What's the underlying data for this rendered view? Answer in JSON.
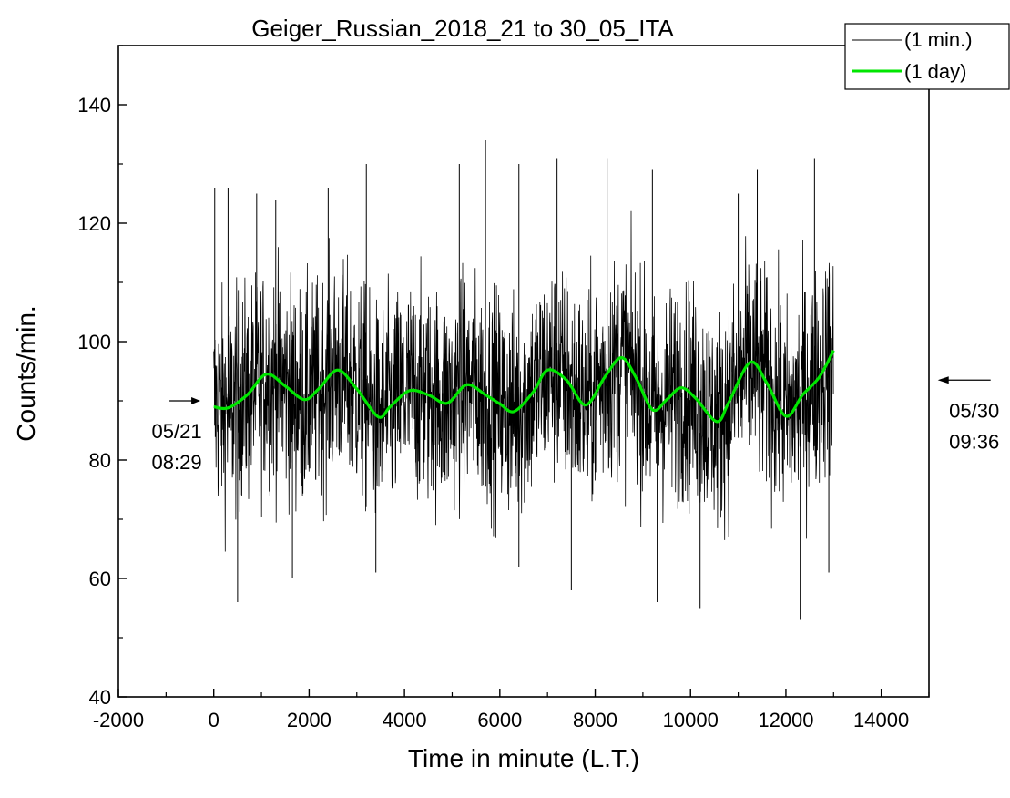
{
  "chart_data": {
    "type": "line",
    "title": "Geiger_Russian_2018_21 to 30_05_ITA",
    "xlabel": "Time in minute (L.T.)",
    "ylabel": "Counts/min.",
    "xlim": [
      -2000,
      15000
    ],
    "ylim": [
      40,
      150
    ],
    "x_ticks": [
      -2000,
      0,
      2000,
      4000,
      6000,
      8000,
      10000,
      12000,
      14000
    ],
    "y_ticks": [
      40,
      60,
      80,
      100,
      120,
      140
    ],
    "x_tick_labels": [
      "-2000",
      "0",
      "2000",
      "4000",
      "6000",
      "8000",
      "10000",
      "12000",
      "14000"
    ],
    "y_tick_labels": [
      "40",
      "60",
      "80",
      "100",
      "120",
      "140"
    ],
    "grid": false,
    "legend_position": "top-right",
    "series": [
      {
        "name": "(1 min.)",
        "color": "#000000",
        "x_range": [
          0,
          13000
        ],
        "description_points_typical_band": [
          72,
          108
        ],
        "extremes": {
          "max": 134,
          "min": 53
        },
        "spike_samples": [
          {
            "x": 20,
            "y": 126
          },
          {
            "x": 300,
            "y": 126
          },
          {
            "x": 500,
            "y": 56
          },
          {
            "x": 900,
            "y": 125
          },
          {
            "x": 1300,
            "y": 124
          },
          {
            "x": 1650,
            "y": 60
          },
          {
            "x": 2400,
            "y": 126
          },
          {
            "x": 3200,
            "y": 130
          },
          {
            "x": 3400,
            "y": 61
          },
          {
            "x": 5150,
            "y": 130
          },
          {
            "x": 5700,
            "y": 134
          },
          {
            "x": 6400,
            "y": 130
          },
          {
            "x": 6400,
            "y": 62
          },
          {
            "x": 7200,
            "y": 131
          },
          {
            "x": 7500,
            "y": 58
          },
          {
            "x": 8250,
            "y": 131
          },
          {
            "x": 9200,
            "y": 129
          },
          {
            "x": 9300,
            "y": 56
          },
          {
            "x": 10200,
            "y": 55
          },
          {
            "x": 11000,
            "y": 125
          },
          {
            "x": 11400,
            "y": 129
          },
          {
            "x": 12300,
            "y": 53
          },
          {
            "x": 12600,
            "y": 131
          },
          {
            "x": 12900,
            "y": 61
          }
        ]
      },
      {
        "name": "(1 day)",
        "color": "#00e600",
        "x": [
          0,
          300,
          700,
          1100,
          1500,
          1900,
          2200,
          2600,
          3000,
          3450,
          3700,
          4100,
          4500,
          4900,
          5300,
          5700,
          6000,
          6300,
          6700,
          7000,
          7400,
          7800,
          8200,
          8550,
          8850,
          9200,
          9500,
          9800,
          10100,
          10550,
          10800,
          11250,
          11600,
          12000,
          12350,
          12700,
          13000
        ],
        "values": [
          89,
          88.8,
          91,
          94.5,
          92.5,
          90.2,
          92,
          95.2,
          92,
          87.3,
          89,
          91.7,
          91,
          89.6,
          92.7,
          91,
          89.5,
          88.2,
          91.5,
          95.2,
          93.5,
          89.3,
          94,
          97.3,
          94,
          88.5,
          90.2,
          92.2,
          90.5,
          86.5,
          89.7,
          96.5,
          93,
          87.4,
          91,
          94,
          98.5
        ]
      }
    ],
    "annotations": [
      {
        "lines": [
          "05/21",
          "08:29"
        ],
        "arrow": "right",
        "at_x": -280,
        "at_y": 90
      },
      {
        "lines": [
          "05/30",
          "09:36"
        ],
        "arrow": "left",
        "at_x": 15300,
        "at_y": 93.5
      }
    ]
  }
}
